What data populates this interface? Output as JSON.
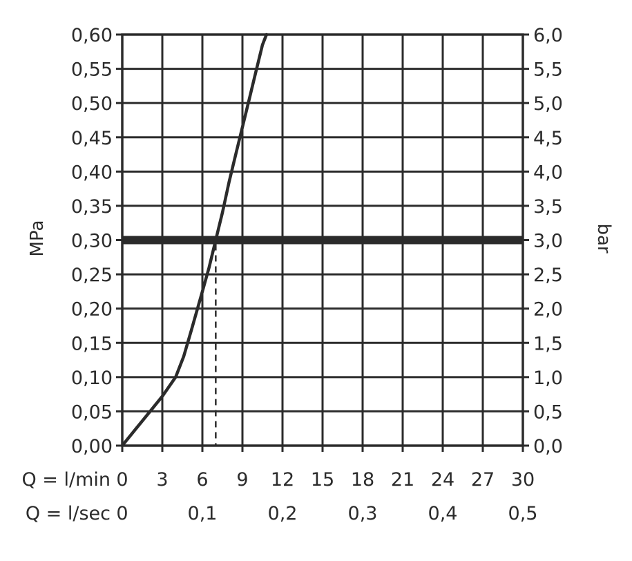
{
  "chart_data": {
    "type": "line",
    "ylabel": "MPa",
    "y2label": "bar",
    "x_row_label_lmin": "Q = l/min",
    "x_row_label_lsec": "Q = l/sec",
    "x_ticks_lmin": [
      "0",
      "3",
      "6",
      "9",
      "12",
      "15",
      "18",
      "21",
      "24",
      "27",
      "30"
    ],
    "x_ticks_lsec": [
      {
        "x": 0,
        "label": "0"
      },
      {
        "x": 6,
        "label": "0,1"
      },
      {
        "x": 12,
        "label": "0,2"
      },
      {
        "x": 18,
        "label": "0,3"
      },
      {
        "x": 24,
        "label": "0,4"
      },
      {
        "x": 30,
        "label": "0,5"
      }
    ],
    "y_ticks_mpa": [
      "0,00",
      "0,05",
      "0,10",
      "0,15",
      "0,20",
      "0,25",
      "0,30",
      "0,35",
      "0,40",
      "0,45",
      "0,50",
      "0,55",
      "0,60"
    ],
    "y_ticks_bar": [
      "0,0",
      "0,5",
      "1,0",
      "1,5",
      "2,0",
      "2,5",
      "3,0",
      "3,5",
      "4,0",
      "4,5",
      "5,0",
      "5,5",
      "6,0"
    ],
    "xlim": [
      0,
      30
    ],
    "ylim": [
      0,
      0.6
    ],
    "grid": true,
    "series": [
      {
        "x": [
          0,
          1,
          2,
          3,
          4,
          4.6,
          5.2,
          6,
          6.5,
          7,
          7.5,
          8,
          8.5,
          9,
          9.5,
          10,
          10.5,
          10.8
        ],
        "values": [
          0,
          0.024,
          0.048,
          0.072,
          0.1,
          0.13,
          0.17,
          0.225,
          0.26,
          0.3,
          0.34,
          0.385,
          0.425,
          0.465,
          0.505,
          0.545,
          0.585,
          0.6
        ]
      }
    ],
    "reference_line": {
      "y": 0.3
    },
    "operating_point": {
      "x": 7,
      "y": 0.3
    }
  }
}
